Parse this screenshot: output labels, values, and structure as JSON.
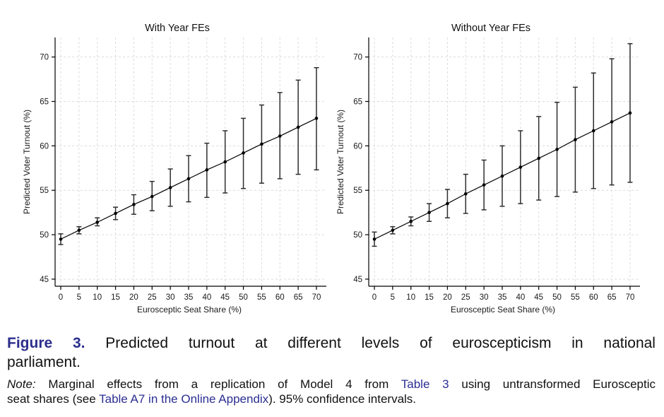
{
  "colors": {
    "figure_label": "#2b2e8c",
    "link": "#2b2e92",
    "body_text": "#111111",
    "grid": "#dcdcdc",
    "ink": "#000000"
  },
  "figure": {
    "caption": {
      "label": "Figure 3.",
      "line1": "Predicted turnout at different levels of euroscepticism in national",
      "line2": "parliament."
    },
    "note": {
      "prefix": "Note:",
      "line1_pre": "Marginal effects from a replication of Model 4 from",
      "line1_link": "Table 3",
      "line1_post": "using untransformed Eurosceptic",
      "line2_pre": "seat shares (see",
      "line2_link": "Table A7 in the Online Appendix",
      "line2_post": "). 95% confidence intervals."
    }
  },
  "chart_data": [
    {
      "type": "line",
      "title": "With Year FEs",
      "xlabel": "Eurosceptic Seat Share (%)",
      "ylabel": "Predicted Voter Turnout (%)",
      "x": [
        0,
        5,
        10,
        15,
        20,
        25,
        30,
        35,
        40,
        45,
        50,
        55,
        60,
        65,
        70
      ],
      "series": [
        {
          "name": "Predicted turnout (point estimate)",
          "values": [
            49.5,
            50.5,
            51.4,
            52.4,
            53.4,
            54.3,
            55.3,
            56.3,
            57.3,
            58.2,
            59.2,
            60.2,
            61.1,
            62.1,
            63.1
          ]
        }
      ],
      "ci_low": [
        48.9,
        50.1,
        51.0,
        51.7,
        52.3,
        52.7,
        53.2,
        53.7,
        54.2,
        54.7,
        55.2,
        55.8,
        56.3,
        56.8,
        57.3
      ],
      "ci_high": [
        50.1,
        50.9,
        51.9,
        53.1,
        54.5,
        56.0,
        57.4,
        58.9,
        60.3,
        61.7,
        63.1,
        64.6,
        66.0,
        67.4,
        68.8
      ],
      "ci_level": "95%",
      "xticks": [
        0,
        5,
        10,
        15,
        20,
        25,
        30,
        35,
        40,
        45,
        50,
        55,
        60,
        65,
        70
      ],
      "yticks": [
        45,
        50,
        55,
        60,
        65,
        70
      ],
      "ylim": [
        44.2,
        72.2
      ],
      "grid": true,
      "legend": false,
      "marker": "circle"
    },
    {
      "type": "line",
      "title": "Without Year FEs",
      "xlabel": "Eurosceptic Seat Share (%)",
      "ylabel": "Predicted Voter Turnout (%)",
      "x": [
        0,
        5,
        10,
        15,
        20,
        25,
        30,
        35,
        40,
        45,
        50,
        55,
        60,
        65,
        70
      ],
      "series": [
        {
          "name": "Predicted turnout (point estimate)",
          "values": [
            49.5,
            50.5,
            51.5,
            52.5,
            53.5,
            54.6,
            55.6,
            56.6,
            57.6,
            58.6,
            59.6,
            60.7,
            61.7,
            62.7,
            63.7
          ]
        }
      ],
      "ci_low": [
        48.7,
        50.1,
        51.0,
        51.5,
        51.9,
        52.4,
        52.8,
        53.2,
        53.5,
        53.9,
        54.3,
        54.8,
        55.2,
        55.6,
        55.9
      ],
      "ci_high": [
        50.3,
        50.9,
        52.0,
        53.5,
        55.1,
        56.8,
        58.4,
        60.0,
        61.7,
        63.3,
        64.9,
        66.6,
        68.2,
        69.8,
        71.5
      ],
      "ci_level": "95%",
      "xticks": [
        0,
        5,
        10,
        15,
        20,
        25,
        30,
        35,
        40,
        45,
        50,
        55,
        60,
        65,
        70
      ],
      "yticks": [
        45,
        50,
        55,
        60,
        65,
        70
      ],
      "ylim": [
        44.2,
        72.2
      ],
      "grid": true,
      "legend": false,
      "marker": "circle"
    }
  ]
}
